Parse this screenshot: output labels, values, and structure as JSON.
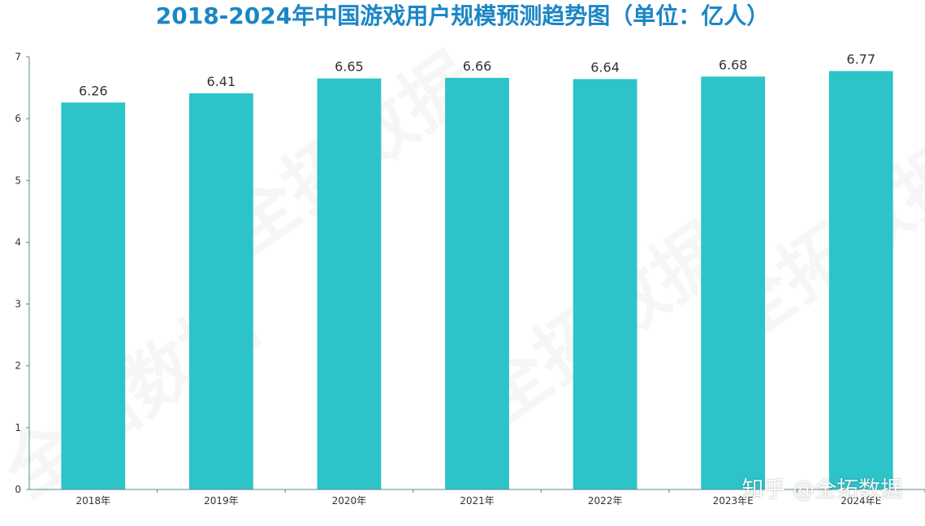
{
  "chart_data": {
    "type": "bar",
    "title": "2018-2024年中国游戏用户规模预测趋势图（单位：亿人）",
    "categories": [
      "2018年",
      "2019年",
      "2020年",
      "2021年",
      "2022年",
      "2023年E",
      "2024年E"
    ],
    "values": [
      6.26,
      6.41,
      6.65,
      6.66,
      6.64,
      6.68,
      6.77
    ],
    "yticks": [
      0,
      1,
      2,
      3,
      4,
      5,
      6,
      7
    ],
    "ylim": [
      0,
      7
    ],
    "grid": false,
    "bar_color": "#2cc4c8",
    "title_color": "#1b86c6"
  },
  "watermark": "知乎 @全拓数据",
  "background_watermark": "全拓数据"
}
